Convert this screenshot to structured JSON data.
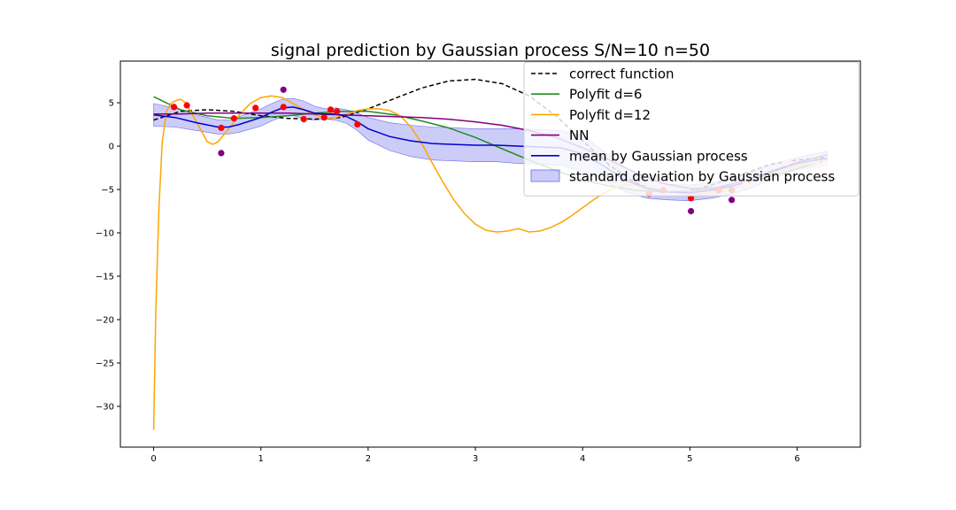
{
  "chart_data": {
    "type": "line",
    "title": "signal prediction by Gaussian process S/N=10 n=50",
    "xlabel": "",
    "ylabel": "",
    "xlim": [
      -0.31,
      6.59
    ],
    "ylim": [
      -34.7,
      9.8
    ],
    "xticks": [
      0,
      1,
      2,
      3,
      4,
      5,
      6
    ],
    "yticks": [
      5,
      0,
      -5,
      -10,
      -15,
      -20,
      -25,
      -30
    ],
    "grid": false,
    "legend_position": "top-right",
    "legend": [
      {
        "label": "correct function",
        "style": "dashed",
        "color": "#000000"
      },
      {
        "label": "Polyfit d=6",
        "style": "solid",
        "color": "#228b22"
      },
      {
        "label": "Polyfit d=12",
        "style": "solid",
        "color": "#ffa500"
      },
      {
        "label": "NN",
        "style": "solid",
        "color": "#800080"
      },
      {
        "label": "mean by Gaussian process",
        "style": "solid",
        "color": "#0000cd"
      },
      {
        "label": "standard deviation by Gaussian process",
        "style": "patch",
        "color": "#8080f0"
      }
    ],
    "series": [
      {
        "name": "correct function",
        "color": "#000000",
        "dash": true,
        "x": [
          0,
          0.25,
          0.5,
          0.75,
          1.0,
          1.25,
          1.5,
          1.75,
          2.0,
          2.25,
          2.5,
          2.75,
          3.0,
          3.25,
          3.5,
          3.75,
          4.0,
          4.25,
          4.5,
          4.75,
          5.0,
          5.25,
          5.5,
          5.75,
          6.0,
          6.28
        ],
        "y": [
          3.0,
          4.0,
          4.2,
          4.0,
          3.5,
          3.2,
          3.1,
          3.3,
          4.3,
          5.5,
          6.7,
          7.5,
          7.7,
          7.2,
          5.8,
          3.5,
          0.6,
          -2.2,
          -4.3,
          -5.3,
          -5.2,
          -4.3,
          -3.2,
          -2.1,
          -1.6,
          -1.3
        ]
      },
      {
        "name": "Polyfit d=6",
        "color": "#228b22",
        "dash": false,
        "x": [
          0,
          0.25,
          0.5,
          0.75,
          1.0,
          1.25,
          1.5,
          1.75,
          2.0,
          2.25,
          2.5,
          2.75,
          3.0,
          3.25,
          3.5,
          3.75,
          4.0,
          4.25,
          4.5,
          4.75,
          5.0,
          5.25,
          5.5,
          5.75,
          6.0,
          6.28
        ],
        "y": [
          5.7,
          4.2,
          3.5,
          3.2,
          3.3,
          3.5,
          3.8,
          4.0,
          4.0,
          3.6,
          2.9,
          2.1,
          1.0,
          -0.3,
          -1.6,
          -2.8,
          -3.9,
          -4.6,
          -5.1,
          -5.3,
          -5.2,
          -4.9,
          -4.3,
          -3.5,
          -2.6,
          -1.6
        ]
      },
      {
        "name": "Polyfit d=12",
        "color": "#ffa500",
        "dash": false,
        "x": [
          0,
          0.02,
          0.05,
          0.08,
          0.12,
          0.16,
          0.2,
          0.25,
          0.3,
          0.4,
          0.5,
          0.55,
          0.6,
          0.7,
          0.8,
          0.9,
          1.0,
          1.1,
          1.2,
          1.3,
          1.4,
          1.5,
          1.6,
          1.7,
          1.8,
          1.9,
          2.0,
          2.1,
          2.2,
          2.3,
          2.4,
          2.5,
          2.6,
          2.7,
          2.8,
          2.9,
          3.0,
          3.1,
          3.2,
          3.3,
          3.4,
          3.5,
          3.6,
          3.7,
          3.8,
          3.9,
          4.0,
          4.1,
          4.2,
          4.3,
          4.4,
          4.5,
          4.6,
          4.7,
          4.8,
          4.9,
          5.0,
          5.1,
          5.2,
          5.3,
          5.4,
          5.5,
          5.6,
          5.7,
          5.8,
          5.9,
          6.0,
          6.1,
          6.2,
          6.28
        ],
        "y": [
          -32.7,
          -19.0,
          -7.0,
          0.5,
          4.0,
          4.9,
          5.2,
          5.4,
          5.0,
          2.8,
          0.5,
          0.2,
          0.5,
          2.0,
          3.6,
          4.9,
          5.6,
          5.8,
          5.6,
          4.9,
          4.2,
          3.6,
          3.2,
          3.3,
          3.7,
          4.1,
          4.3,
          4.3,
          4.1,
          3.5,
          2.2,
          0.3,
          -2.0,
          -4.2,
          -6.2,
          -7.8,
          -9.0,
          -9.7,
          -9.9,
          -9.8,
          -9.5,
          -9.9,
          -9.8,
          -9.4,
          -8.8,
          -8.0,
          -7.1,
          -6.2,
          -5.4,
          -4.8,
          -4.5,
          -4.5,
          -4.7,
          -5.0,
          -5.2,
          -5.4,
          -5.5,
          -5.5,
          -5.4,
          -5.2,
          -4.9,
          -4.5,
          -4.0,
          -3.5,
          -3.0,
          -2.6,
          -2.3,
          -2.1,
          -2.0,
          -2.0
        ]
      },
      {
        "name": "NN",
        "color": "#800080",
        "dash": false,
        "x": [
          0,
          0.25,
          0.5,
          0.75,
          1.0,
          1.25,
          1.5,
          1.75,
          2.0,
          2.25,
          2.5,
          2.75,
          3.0,
          3.25,
          3.5,
          3.75,
          4.0,
          4.25,
          4.5,
          4.75,
          5.0,
          5.25,
          5.5,
          5.75,
          6.0,
          6.28
        ],
        "y": [
          3.7,
          3.7,
          3.8,
          3.8,
          3.8,
          3.8,
          3.7,
          3.6,
          3.5,
          3.4,
          3.3,
          3.1,
          2.8,
          2.4,
          1.8,
          1.0,
          -0.2,
          -1.6,
          -3.1,
          -4.3,
          -4.9,
          -4.8,
          -4.0,
          -2.9,
          -1.9,
          -1.0
        ]
      },
      {
        "name": "mean by Gaussian process",
        "color": "#0000cd",
        "dash": false,
        "x": [
          0,
          0.2,
          0.4,
          0.6,
          0.7,
          0.8,
          1.0,
          1.1,
          1.2,
          1.3,
          1.4,
          1.5,
          1.6,
          1.7,
          1.8,
          1.9,
          2.0,
          2.2,
          2.4,
          2.6,
          2.8,
          3.0,
          3.2,
          3.4,
          3.6,
          3.8,
          4.0,
          4.2,
          4.4,
          4.6,
          4.8,
          5.0,
          5.2,
          5.4,
          5.6,
          5.8,
          6.0,
          6.28
        ],
        "y": [
          3.6,
          3.3,
          2.7,
          2.2,
          2.2,
          2.5,
          3.3,
          3.9,
          4.4,
          4.5,
          4.2,
          3.8,
          3.7,
          3.7,
          3.4,
          2.8,
          2.0,
          1.1,
          0.6,
          0.3,
          0.2,
          0.1,
          0.1,
          0.0,
          -0.1,
          -0.2,
          -0.9,
          -2.3,
          -3.9,
          -4.9,
          -5.3,
          -5.4,
          -5.1,
          -4.6,
          -3.8,
          -2.8,
          -2.0,
          -1.4
        ]
      }
    ],
    "std_band": {
      "name": "standard deviation by Gaussian process",
      "color": "#8080f0",
      "x": [
        0,
        0.2,
        0.4,
        0.6,
        0.7,
        0.8,
        1.0,
        1.1,
        1.2,
        1.3,
        1.4,
        1.5,
        1.6,
        1.7,
        1.8,
        1.9,
        2.0,
        2.2,
        2.4,
        2.6,
        2.8,
        3.0,
        3.2,
        3.4,
        3.6,
        3.8,
        4.0,
        4.2,
        4.4,
        4.6,
        4.8,
        5.0,
        5.2,
        5.4,
        5.6,
        5.8,
        6.0,
        6.28
      ],
      "upper": [
        4.9,
        4.4,
        3.6,
        3.0,
        3.0,
        3.4,
        4.3,
        4.9,
        5.4,
        5.5,
        5.2,
        4.6,
        4.3,
        4.4,
        4.2,
        3.8,
        3.3,
        2.7,
        2.4,
        2.2,
        2.1,
        2.0,
        2.0,
        2.0,
        1.9,
        1.8,
        1.2,
        -0.6,
        -2.5,
        -3.8,
        -4.4,
        -4.5,
        -4.2,
        -3.7,
        -2.9,
        -2.0,
        -1.3,
        -0.6
      ],
      "lower": [
        2.3,
        2.2,
        1.8,
        1.4,
        1.4,
        1.6,
        2.3,
        2.9,
        3.4,
        3.5,
        3.2,
        3.0,
        3.1,
        3.0,
        2.6,
        1.8,
        0.7,
        -0.5,
        -1.2,
        -1.6,
        -1.7,
        -1.8,
        -1.8,
        -2.0,
        -2.1,
        -2.2,
        -3.0,
        -4.0,
        -5.3,
        -6.0,
        -6.2,
        -6.3,
        -6.0,
        -5.5,
        -4.7,
        -3.6,
        -2.7,
        -2.2
      ]
    },
    "points_red": {
      "color": "#ff0000",
      "x": [
        0.19,
        0.31,
        0.63,
        0.75,
        0.95,
        1.21,
        1.4,
        1.59,
        1.65,
        1.71,
        1.9,
        4.62,
        4.75,
        5.01,
        5.27,
        5.39
      ],
      "y": [
        4.5,
        4.7,
        2.1,
        3.2,
        4.4,
        4.5,
        3.1,
        3.3,
        4.2,
        4.0,
        2.5,
        -5.5,
        -5.1,
        -6.0,
        -5.1,
        -5.1
      ]
    },
    "points_purple": {
      "color": "#800080",
      "x": [
        0.63,
        1.21,
        5.01,
        5.39
      ],
      "y": [
        -0.8,
        6.5,
        -7.5,
        -6.2
      ]
    },
    "points_pink": {
      "color": "#ffc0cb",
      "x": [
        5.52,
        5.9,
        6.2,
        6.26
      ],
      "y": [
        -4.4,
        -1.9,
        -2.2,
        -2.0
      ]
    }
  }
}
